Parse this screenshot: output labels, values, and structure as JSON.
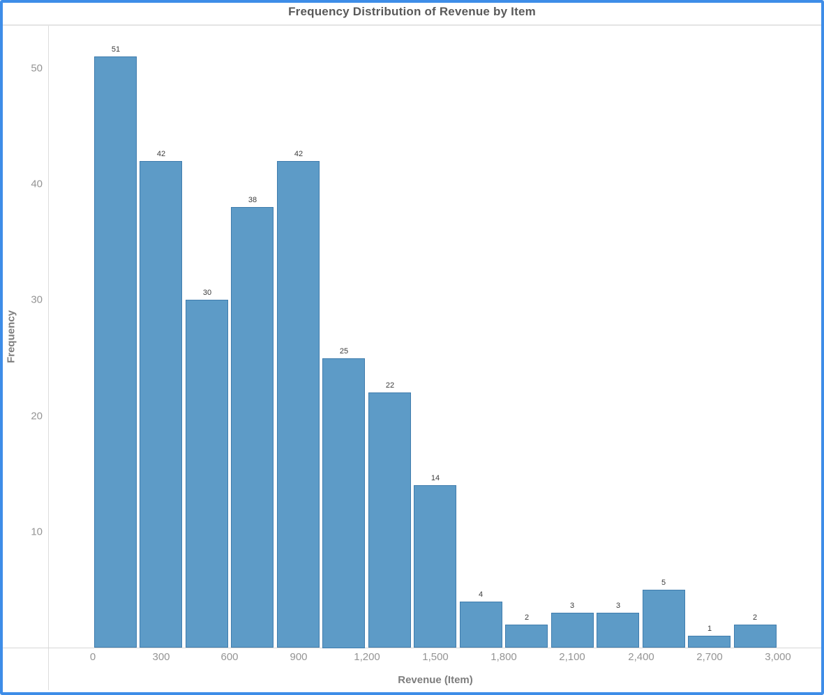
{
  "page": {
    "frame_color": "#3e8de8",
    "background_color": "#ffffff"
  },
  "chart_data": {
    "type": "bar",
    "subtype": "histogram",
    "title": "Frequency Distribution of Revenue by Item",
    "xlabel": "Revenue (Item)",
    "ylabel": "Frequency",
    "bin_width": 200,
    "bin_edges": [
      0,
      200,
      400,
      600,
      800,
      1000,
      1200,
      1400,
      1600,
      1800,
      2000,
      2200,
      2400,
      2600,
      2800,
      3000
    ],
    "values": [
      51,
      42,
      30,
      38,
      42,
      25,
      22,
      14,
      4,
      2,
      3,
      3,
      5,
      1,
      2
    ],
    "show_bar_labels": true,
    "bar_labels": [
      "51",
      "42",
      "30",
      "38",
      "42",
      "25",
      "22",
      "14",
      "4",
      "2",
      "3",
      "3",
      "5",
      "1",
      "2"
    ],
    "x_tick_values": [
      0,
      300,
      600,
      900,
      1200,
      1500,
      1800,
      2100,
      2400,
      2700,
      3000
    ],
    "x_tick_labels": [
      "0",
      "300",
      "600",
      "900",
      "1,200",
      "1,500",
      "1,800",
      "2,100",
      "2,400",
      "2,700",
      "3,000"
    ],
    "y_tick_values": [
      10,
      20,
      30,
      40,
      50
    ],
    "y_tick_labels": [
      "10",
      "20",
      "30",
      "40",
      "50"
    ],
    "xlim": [
      0,
      3000
    ],
    "ylim": [
      0,
      53.6
    ],
    "grid": "off",
    "legend": "none",
    "bar_color": "#5d9bc7",
    "bar_border_color": "#3f7cad"
  }
}
